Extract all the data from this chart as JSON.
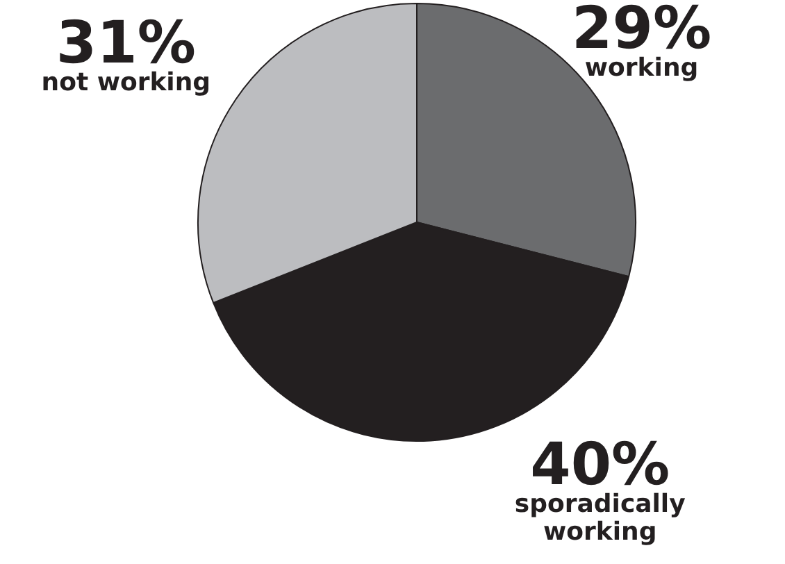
{
  "chart_data": {
    "type": "pie",
    "categories": [
      "working",
      "sporadically working",
      "not working"
    ],
    "values": [
      29,
      40,
      31
    ],
    "value_labels": [
      "29%",
      "40%",
      "31%"
    ],
    "colors": [
      "#6b6c6e",
      "#231f20",
      "#bcbdc0"
    ],
    "legend": false
  }
}
